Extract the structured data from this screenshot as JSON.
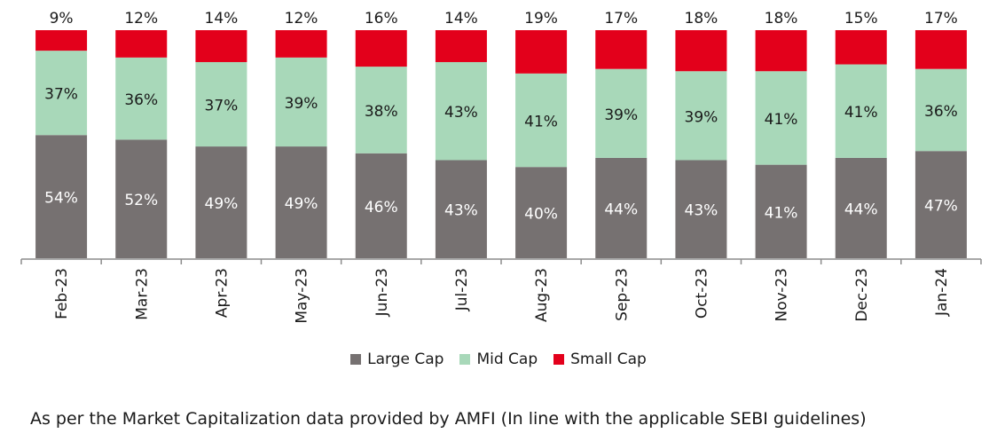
{
  "chart_data": {
    "type": "bar",
    "stacked": true,
    "categories": [
      "Feb-23",
      "Mar-23",
      "Apr-23",
      "May-23",
      "Jun-23",
      "Jul-23",
      "Aug-23",
      "Sep-23",
      "Oct-23",
      "Nov-23",
      "Dec-23",
      "Jan-24"
    ],
    "series": [
      {
        "name": "Large Cap",
        "color": "#767171",
        "values": [
          54,
          52,
          49,
          49,
          46,
          43,
          40,
          44,
          43,
          41,
          44,
          47
        ]
      },
      {
        "name": "Mid Cap",
        "color": "#a8d8b9",
        "values": [
          37,
          36,
          37,
          39,
          38,
          43,
          41,
          39,
          39,
          41,
          41,
          36
        ]
      },
      {
        "name": "Small Cap",
        "color": "#e3001b",
        "values": [
          9,
          12,
          14,
          12,
          16,
          14,
          19,
          17,
          18,
          18,
          15,
          17
        ]
      }
    ],
    "value_suffix": "%",
    "ylim": [
      0,
      100
    ],
    "legend_position": "bottom",
    "grid": false
  },
  "footnote": "As per the Market Capitalization data provided by AMFI (In line with the applicable SEBI guidelines)"
}
